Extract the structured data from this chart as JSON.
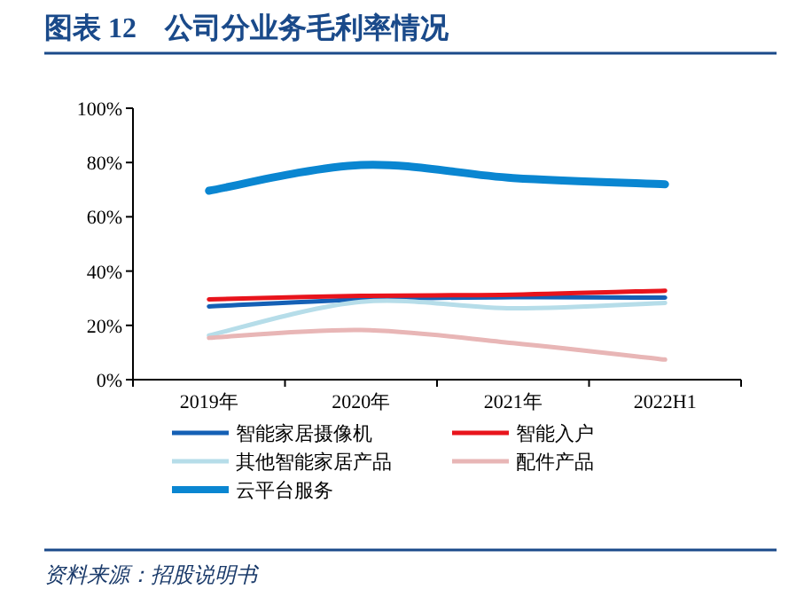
{
  "chart_data": {
    "type": "line",
    "title": "图表 12　公司分业务毛利率情况",
    "categories": [
      "2019年",
      "2020年",
      "2021年",
      "2022H1"
    ],
    "series": [
      {
        "name": "智能家居摄像机",
        "color": "#1560b5",
        "values": [
          27,
          29.5,
          30.4,
          30.2
        ]
      },
      {
        "name": "智能入户",
        "color": "#e8141c",
        "values": [
          29.6,
          30.9,
          31.3,
          32.8
        ]
      },
      {
        "name": "其他智能家居产品",
        "color": "#b6dde9",
        "values": [
          16.3,
          28.7,
          26.3,
          28.3
        ]
      },
      {
        "name": "配件产品",
        "color": "#e8b6b6",
        "values": [
          15.4,
          18.3,
          13.5,
          7.4
        ]
      },
      {
        "name": "云平台服务",
        "color": "#0a86d1",
        "values": [
          69.6,
          79.1,
          74.3,
          72
        ]
      }
    ],
    "ylim": [
      0,
      100
    ],
    "yticks": [
      {
        "value": 0,
        "label": "0%"
      },
      {
        "value": 20,
        "label": "20%"
      },
      {
        "value": 40,
        "label": "40%"
      },
      {
        "value": 60,
        "label": "60%"
      },
      {
        "value": 80,
        "label": "80%"
      },
      {
        "value": 100,
        "label": "100%"
      }
    ],
    "grid": false,
    "legend": "bottom",
    "line_style": "solid",
    "marker": "none",
    "annotations": [
      "资料来源：招股说明书"
    ]
  }
}
